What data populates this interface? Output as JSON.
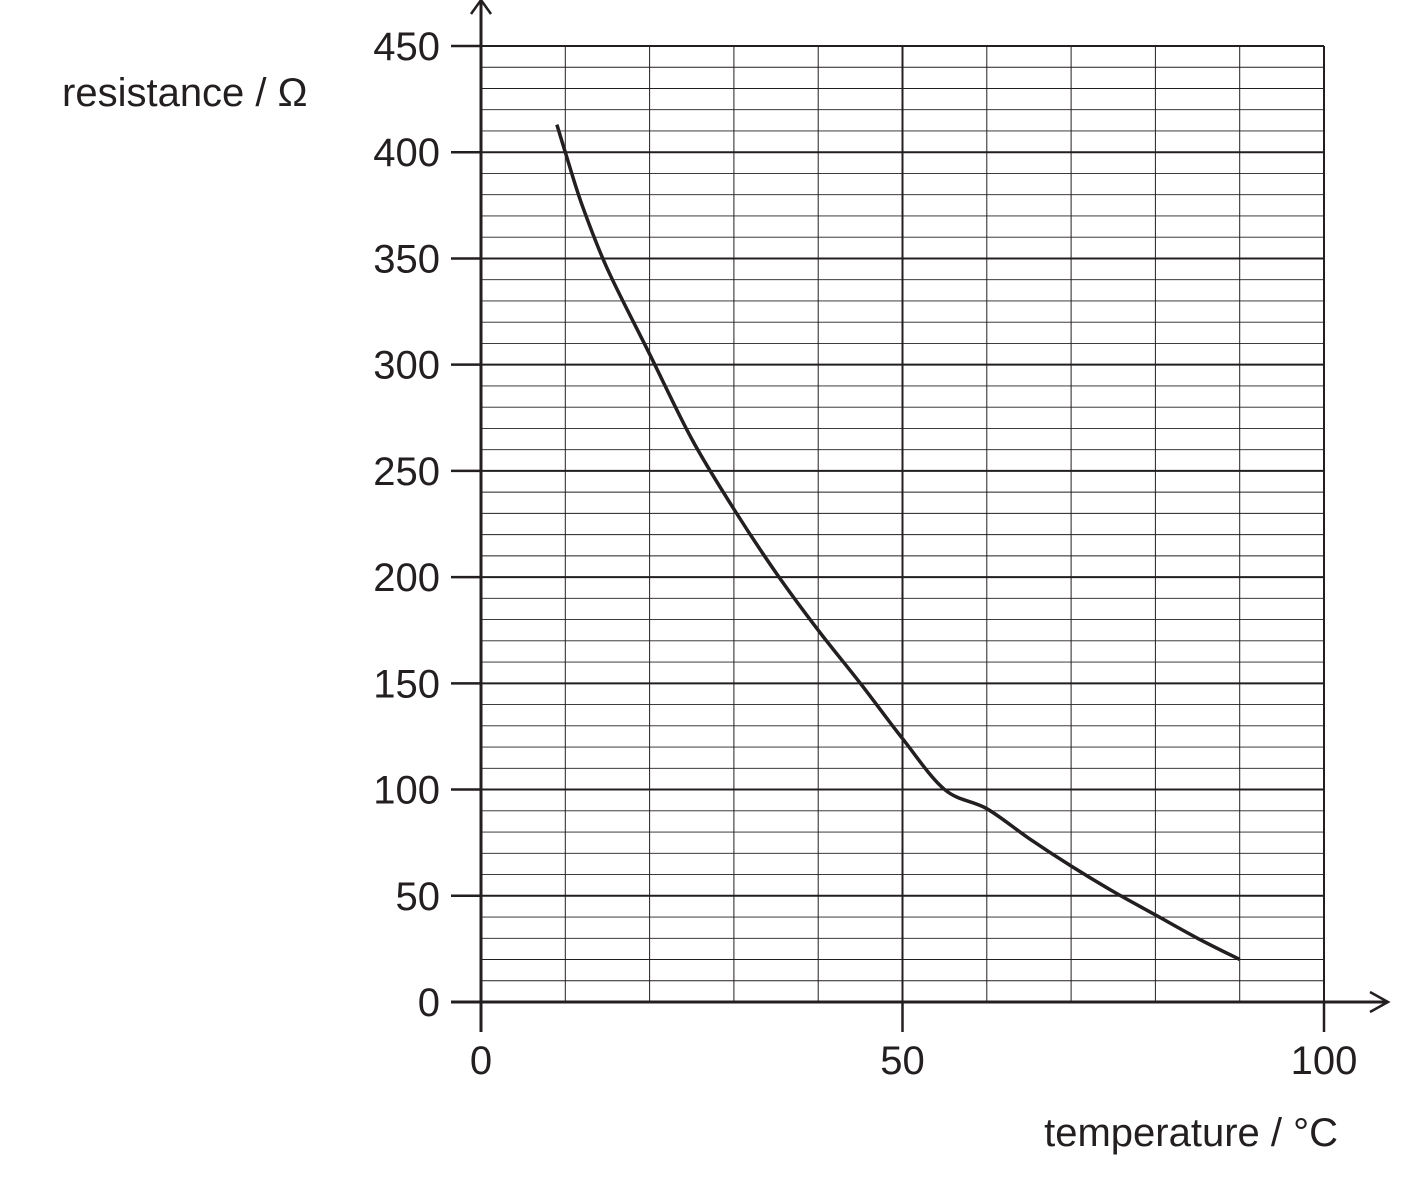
{
  "chart_data": {
    "type": "line",
    "title": "",
    "xlabel": "temperature / °C",
    "ylabel": "resistance / Ω",
    "xlim": [
      0,
      100
    ],
    "ylim": [
      0,
      450
    ],
    "x_ticks": [
      0,
      50,
      100
    ],
    "y_ticks": [
      0,
      50,
      100,
      150,
      200,
      250,
      300,
      350,
      400,
      450
    ],
    "x_tick_labels": [
      "0",
      "50",
      "100"
    ],
    "y_tick_labels": [
      "0",
      "50",
      "100",
      "150",
      "200",
      "250",
      "300",
      "350",
      "400",
      "450"
    ],
    "grid": true,
    "x_major_grid_step": 10,
    "y_major_grid_step": 50,
    "y_minor_grid_step": 10,
    "series": [
      {
        "x": [
          9,
          10,
          12,
          15,
          20,
          25,
          30,
          35,
          40,
          45,
          50,
          55,
          60,
          65,
          70,
          75,
          80,
          85,
          90
        ],
        "y": [
          413,
          400,
          375,
          345,
          305,
          265,
          232,
          202,
          175,
          150,
          124,
          100,
          91,
          77,
          64,
          52,
          41,
          30,
          20
        ]
      }
    ],
    "colors": {
      "line": "#231f20",
      "grid": "#231f20"
    }
  }
}
